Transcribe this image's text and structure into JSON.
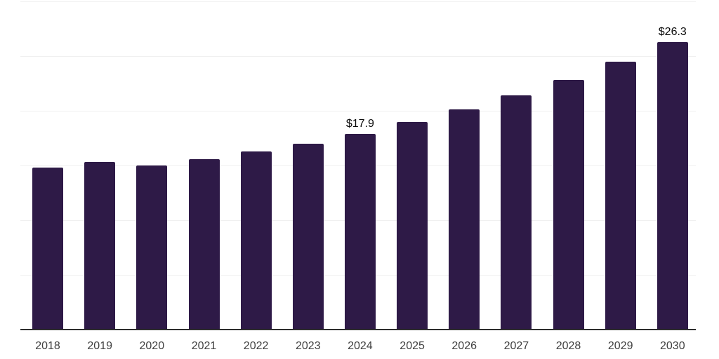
{
  "chart_data": {
    "type": "bar",
    "title": "",
    "xlabel": "",
    "ylabel": "",
    "categories": [
      "2018",
      "2019",
      "2020",
      "2021",
      "2022",
      "2023",
      "2024",
      "2025",
      "2026",
      "2027",
      "2028",
      "2029",
      "2030"
    ],
    "values": [
      14.8,
      15.3,
      15.0,
      15.6,
      16.3,
      17.0,
      17.9,
      19.0,
      20.1,
      21.4,
      22.8,
      24.5,
      26.3
    ],
    "data_labels": [
      {
        "category": "2024",
        "text": "$17.9"
      },
      {
        "category": "2030",
        "text": "$26.3"
      }
    ],
    "value_prefix": "$",
    "ylim": [
      0,
      30
    ],
    "gridline_values": [
      5,
      10,
      15,
      20,
      25,
      30
    ],
    "grid": "horizontal-only",
    "y_axis_labels_visible": false,
    "legend_position": "none",
    "colors": {
      "bar": "#2e1a47",
      "gridline": "#f0f0f0",
      "axis": "#2e2e2e",
      "tick_label": "#404040",
      "data_label": "#0a0a0a",
      "background": "#ffffff"
    }
  }
}
